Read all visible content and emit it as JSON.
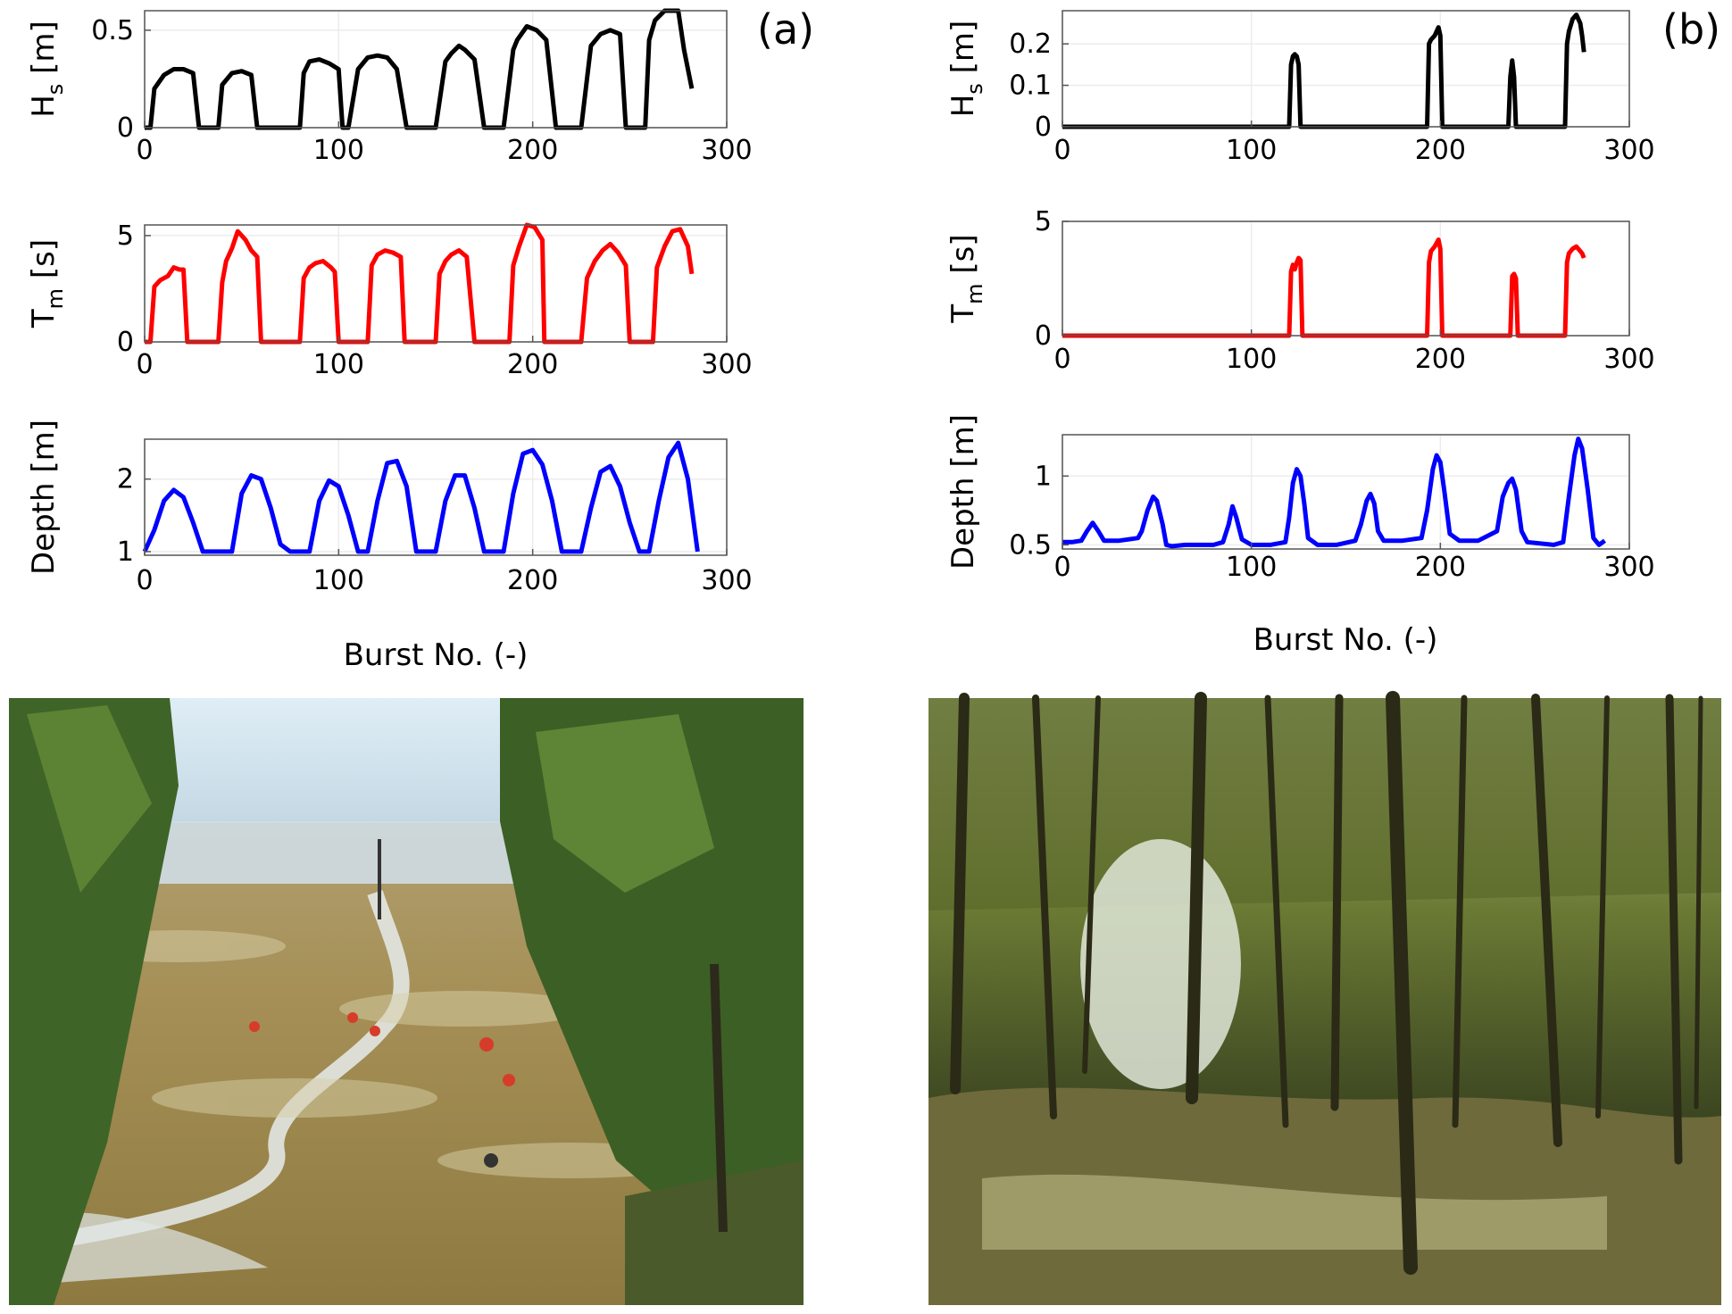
{
  "panels": [
    {
      "label": "(a)",
      "xlabel": "Burst No. (-)"
    },
    {
      "label": "(b)",
      "xlabel": "Burst No. (-)"
    }
  ],
  "photos": [
    {
      "name": "mudflat-photo",
      "description_colors": [
        "#c8dbe6",
        "#a9935d",
        "#3f6428"
      ]
    },
    {
      "name": "mangrove-forest-photo",
      "description_colors": [
        "#2e3a1b",
        "#7f8a3c",
        "#b4b48a"
      ]
    }
  ],
  "chart_data": [
    {
      "type": "line",
      "panel": "(a)",
      "ylabel": "H",
      "ylabel_sub": "s",
      "ylabel_unit": "[m]",
      "color": "#000000",
      "xlim": [
        0,
        300
      ],
      "ylim": [
        0,
        0.6
      ],
      "xticks": [
        "0",
        "100",
        "200",
        "300"
      ],
      "yticks": [
        "0",
        "0.5"
      ],
      "ytick_values": [
        0,
        0.5
      ],
      "x": [
        0,
        3,
        5,
        10,
        15,
        20,
        25,
        28,
        35,
        38,
        40,
        45,
        50,
        55,
        58,
        62,
        70,
        80,
        82,
        85,
        90,
        95,
        100,
        102,
        105,
        110,
        115,
        120,
        125,
        130,
        135,
        140,
        150,
        155,
        158,
        162,
        165,
        170,
        175,
        178,
        185,
        190,
        192,
        197,
        202,
        207,
        212,
        220,
        225,
        230,
        235,
        240,
        245,
        248,
        258,
        260,
        263,
        268,
        272,
        275,
        278,
        282
      ],
      "y": [
        0,
        0,
        0.2,
        0.27,
        0.3,
        0.3,
        0.28,
        0,
        0,
        0,
        0.22,
        0.28,
        0.29,
        0.27,
        0,
        0,
        0,
        0,
        0.28,
        0.34,
        0.35,
        0.33,
        0.3,
        0,
        0,
        0.3,
        0.36,
        0.37,
        0.36,
        0.3,
        0,
        0,
        0,
        0.34,
        0.38,
        0.42,
        0.4,
        0.35,
        0,
        0,
        0,
        0.4,
        0.45,
        0.52,
        0.5,
        0.45,
        0,
        0,
        0,
        0.42,
        0.48,
        0.5,
        0.48,
        0,
        0,
        0.45,
        0.55,
        0.6,
        0.63,
        0.6,
        0.4,
        0.2
      ]
    },
    {
      "type": "line",
      "panel": "(a)",
      "ylabel": "T",
      "ylabel_sub": "m",
      "ylabel_unit": "[s]",
      "color": "#ff0000",
      "xlim": [
        0,
        300
      ],
      "ylim": [
        0,
        5.5
      ],
      "xticks": [
        "0",
        "100",
        "200",
        "300"
      ],
      "yticks": [
        "0",
        "5"
      ],
      "ytick_values": [
        0,
        5
      ],
      "x": [
        0,
        3,
        5,
        8,
        12,
        15,
        18,
        20,
        22,
        38,
        40,
        42,
        45,
        48,
        52,
        55,
        58,
        60,
        80,
        82,
        85,
        88,
        92,
        96,
        98,
        100,
        115,
        117,
        120,
        124,
        128,
        132,
        134,
        150,
        152,
        155,
        158,
        162,
        166,
        170,
        188,
        190,
        193,
        197,
        201,
        205,
        206,
        225,
        228,
        232,
        236,
        240,
        244,
        248,
        250,
        262,
        264,
        268,
        272,
        276,
        280,
        282
      ],
      "y": [
        0,
        0,
        2.6,
        2.9,
        3.1,
        3.5,
        3.4,
        3.4,
        0,
        0,
        2.8,
        3.8,
        4.4,
        5.2,
        4.8,
        4.3,
        4.0,
        0,
        0,
        3.0,
        3.5,
        3.7,
        3.8,
        3.5,
        3.3,
        0,
        0,
        3.6,
        4.1,
        4.3,
        4.2,
        4.0,
        0,
        0,
        3.2,
        3.8,
        4.1,
        4.3,
        4.0,
        0,
        0,
        3.6,
        4.5,
        5.5,
        5.4,
        4.8,
        0,
        0,
        3.0,
        3.8,
        4.3,
        4.6,
        4.2,
        3.6,
        0,
        0,
        3.5,
        4.5,
        5.2,
        5.3,
        4.5,
        3.2
      ]
    },
    {
      "type": "line",
      "panel": "(a)",
      "ylabel": "Depth [m]",
      "color": "#0000ff",
      "xlim": [
        0,
        300
      ],
      "ylim": [
        0.95,
        2.55
      ],
      "xticks": [
        "0",
        "100",
        "200",
        "300"
      ],
      "yticks": [
        "1",
        "2"
      ],
      "ytick_values": [
        1,
        2
      ],
      "x": [
        0,
        5,
        10,
        15,
        20,
        25,
        30,
        35,
        45,
        50,
        55,
        60,
        65,
        70,
        75,
        80,
        85,
        90,
        95,
        100,
        105,
        110,
        115,
        120,
        125,
        130,
        135,
        140,
        150,
        155,
        160,
        165,
        170,
        175,
        180,
        185,
        190,
        195,
        200,
        205,
        210,
        215,
        225,
        230,
        235,
        240,
        245,
        250,
        255,
        260,
        265,
        270,
        275,
        280,
        285
      ],
      "y": [
        1,
        1.3,
        1.7,
        1.85,
        1.75,
        1.4,
        1.0,
        1.0,
        1.0,
        1.8,
        2.05,
        2.0,
        1.6,
        1.1,
        1.0,
        1.0,
        1.0,
        1.7,
        1.98,
        1.9,
        1.5,
        1.0,
        1.0,
        1.7,
        2.22,
        2.25,
        1.9,
        1.0,
        1.0,
        1.7,
        2.05,
        2.05,
        1.6,
        1.0,
        1.0,
        1.0,
        1.8,
        2.35,
        2.4,
        2.2,
        1.7,
        1.0,
        1.0,
        1.6,
        2.1,
        2.18,
        1.9,
        1.4,
        1.0,
        1.0,
        1.7,
        2.3,
        2.5,
        2.0,
        1.0
      ]
    },
    {
      "type": "line",
      "panel": "(b)",
      "ylabel": "H",
      "ylabel_sub": "s",
      "ylabel_unit": "[m]",
      "color": "#000000",
      "xlim": [
        0,
        300
      ],
      "ylim": [
        0,
        0.28
      ],
      "xticks": [
        "0",
        "100",
        "200",
        "300"
      ],
      "yticks": [
        "0",
        "0.1",
        "0.2"
      ],
      "ytick_values": [
        0,
        0.1,
        0.2
      ],
      "x": [
        0,
        120,
        121,
        122,
        123,
        124,
        125,
        126,
        193,
        194,
        195,
        197,
        199,
        200,
        201,
        236,
        237,
        238,
        239,
        240,
        266,
        267,
        268,
        270,
        272,
        274,
        275,
        276
      ],
      "y": [
        0,
        0,
        0.15,
        0.17,
        0.175,
        0.17,
        0.15,
        0,
        0,
        0.2,
        0.21,
        0.22,
        0.24,
        0.22,
        0,
        0,
        0.12,
        0.16,
        0.12,
        0,
        0,
        0.2,
        0.23,
        0.26,
        0.27,
        0.25,
        0.22,
        0.18
      ]
    },
    {
      "type": "line",
      "panel": "(b)",
      "ylabel": "T",
      "ylabel_sub": "m",
      "ylabel_unit": "[s]",
      "color": "#ff0000",
      "xlim": [
        0,
        300
      ],
      "ylim": [
        0,
        5
      ],
      "xticks": [
        "0",
        "100",
        "200",
        "300"
      ],
      "yticks": [
        "0",
        "5"
      ],
      "ytick_values": [
        0,
        5
      ],
      "x": [
        0,
        120,
        121,
        122,
        123,
        124,
        125,
        126,
        127,
        193,
        194,
        195,
        197,
        199,
        200,
        201,
        237,
        238,
        239,
        240,
        241,
        266,
        267,
        268,
        270,
        272,
        274,
        275,
        276
      ],
      "y": [
        0,
        0,
        2.8,
        3.1,
        2.9,
        3.2,
        3.4,
        3.3,
        0,
        0,
        3.2,
        3.7,
        3.9,
        4.2,
        3.8,
        0,
        0,
        2.6,
        2.7,
        2.5,
        0,
        0,
        3.2,
        3.6,
        3.8,
        3.9,
        3.7,
        3.6,
        3.4
      ]
    },
    {
      "type": "line",
      "panel": "(b)",
      "ylabel": "Depth [m]",
      "color": "#0000ff",
      "xlim": [
        0,
        300
      ],
      "ylim": [
        0.47,
        1.3
      ],
      "xticks": [
        "0",
        "100",
        "200",
        "300"
      ],
      "yticks": [
        "0.5",
        "1"
      ],
      "ytick_values": [
        0.5,
        1
      ],
      "x": [
        0,
        5,
        10,
        13,
        16,
        19,
        22,
        30,
        40,
        42,
        45,
        48,
        50,
        53,
        55,
        58,
        65,
        80,
        85,
        88,
        90,
        92,
        95,
        100,
        110,
        118,
        120,
        122,
        124,
        126,
        128,
        130,
        135,
        145,
        155,
        158,
        161,
        163,
        165,
        167,
        170,
        180,
        190,
        193,
        196,
        198,
        200,
        202,
        205,
        210,
        220,
        230,
        233,
        236,
        238,
        240,
        243,
        246,
        260,
        265,
        268,
        271,
        273,
        275,
        278,
        281,
        284,
        287
      ],
      "y": [
        0.52,
        0.52,
        0.53,
        0.6,
        0.66,
        0.6,
        0.53,
        0.53,
        0.55,
        0.6,
        0.75,
        0.85,
        0.82,
        0.65,
        0.5,
        0.49,
        0.5,
        0.5,
        0.52,
        0.65,
        0.78,
        0.7,
        0.54,
        0.5,
        0.5,
        0.52,
        0.7,
        0.95,
        1.05,
        1.0,
        0.8,
        0.55,
        0.5,
        0.5,
        0.53,
        0.65,
        0.82,
        0.87,
        0.8,
        0.6,
        0.53,
        0.53,
        0.55,
        0.75,
        1.05,
        1.15,
        1.1,
        0.9,
        0.58,
        0.53,
        0.53,
        0.6,
        0.85,
        0.95,
        0.98,
        0.9,
        0.6,
        0.52,
        0.5,
        0.52,
        0.85,
        1.15,
        1.27,
        1.2,
        0.9,
        0.55,
        0.5,
        0.53
      ]
    }
  ]
}
